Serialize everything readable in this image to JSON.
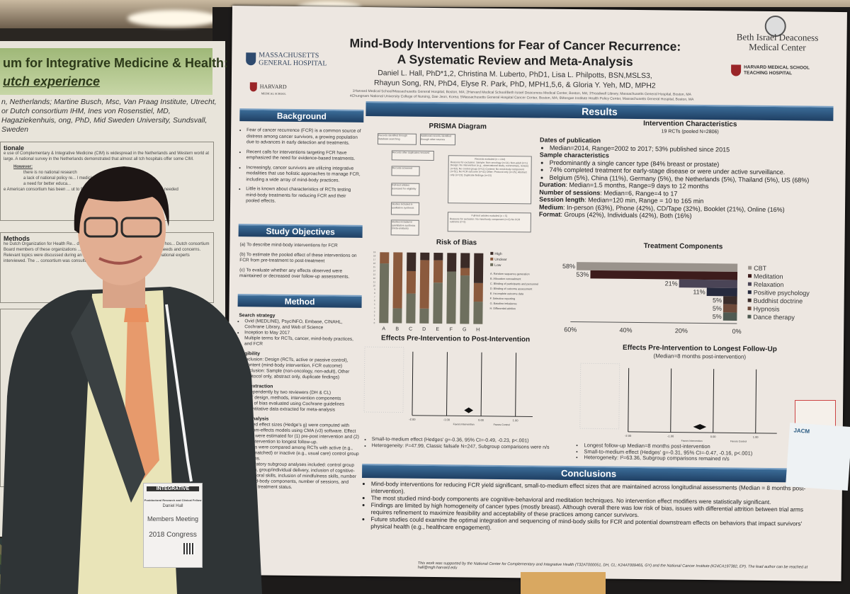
{
  "left_poster": {
    "title_line1": "um for Integrative Medicine & Health:",
    "title_line2": "utch experience",
    "authors": "n, Netherlands; Martine Busch, Msc, Van Praag Institute, Utrecht, or Dutch consortium IHM, Ines von Rosenstiel, MD, Hagaziekenhuis, ong, PhD, Mid Sweden University, Sundsvall, Sweden",
    "rationale_heading": "tionale",
    "rationale_text": "e use of Complementary & Integrative Medicine (CIM) is widespread in the Netherlands and Western world at large. A national survey in the Netherlands demonstrated that almost all tch hospitals offer some CIM.",
    "however": "However:",
    "however_items": [
      "there is no national research",
      "a lack of national policy re... l medicine and CIM",
      "a need for better educa..."
    ],
    "rationale_tail": "e American consortium has been ... ut to further pport and facilitate the growth of ... e needed",
    "methods_heading": "Methods",
    "methods_text": "he Dutch Organization for Health Re... d a steering committee to guide six pioneering hos... Dutch consortium Board members of these organizations ... were interviewed about their perceptions, needs and concerns. Relevant topics were discussed during an invit... CIM centers were visited and international experts interviewed. The ... consortium was consulted."
  },
  "poster": {
    "title_line1": "Mind-Body Interventions for Fear of Cancer Recurrence:",
    "title_line2": "A Systematic Review and Meta-Analysis",
    "authors_line1": "Daniel L. Hall, PhD*1,2, Christina M. Luberto, PhD1, Lisa L. Philpotts, BSN,MSLS3,",
    "authors_line2": "Rhayun Song, RN, PhD4, Elyse R. Park, PhD, MPH1,5,6, & Gloria Y. Yeh, MD, MPH2",
    "affiliations_line1": "1Harvard Medical School/Massachusetts General Hospital, Boston, MA; 2Harvard Medical School/Beth Israel Deaconess Medical Center, Boston, MA; 3Treadwell Library, Massachusetts General Hospital, Boston, MA",
    "affiliations_line2": "4Chungnam National University College of Nursing, Dae Jeon, Korea; 5Massachusetts General Hospital Cancer Center, Boston, MA; 6Mongan Institute Health Policy Center, Massachusetts General Hospital, Boston, MA",
    "logos": {
      "mgh": "MASSACHUSETTS GENERAL HOSPITAL",
      "harvard": "HARVARD",
      "harvard_sub": "MEDICAL SCHOOL",
      "bidmc": "Beth Israel Deaconess Medical Center",
      "hms": "HARVARD MEDICAL SCHOOL TEACHING HOSPITAL"
    },
    "background": {
      "heading": "Background",
      "items": [
        "Fear of cancer recurrence (FCR) is a common source of distress among cancer survivors, a growing population due to advances in early detection and treatments.",
        "Recent calls for interventions targeting FCR have emphasized the need for evidence-based treatments.",
        "Increasingly, cancer survivors are utilizing integrative modalities that use holistic approaches to manage FCR, including a wide array of mind-body practices.",
        "Little is known about characteristics of RCTs testing mind-body treatments for reducing FCR and their pooled effects."
      ]
    },
    "objectives": {
      "heading": "Study Objectives",
      "items": [
        "(a) To describe mind-body interventions for FCR",
        "(b) To estimate the pooled effect of these interventions on FCR from pre-treatment to post-treatment",
        "(c) To evaluate whether any effects observed were maintained or decreased over follow-up assessments."
      ]
    },
    "method": {
      "heading": "Method",
      "search_heading": "Search strategy",
      "search": [
        "Ovid (MEDLINE), PsycINFO, Embase, CINAHL, Cochrane Library, and Web of Science",
        "Inception to May 2017",
        "Multiple terms for RCTs, cancer, mind-body practices, and FCR"
      ],
      "elig_heading": "Eligibility",
      "elig": [
        "Inclusion: Design (RCTs, active or passive control), Content (mind-body intervention, FCR outcome)",
        "Exclusion: Sample (non-oncology, non-adult), Other (protocol only, abstract only, duplicate findings)"
      ],
      "extract_heading": "Data extraction",
      "extract": [
        "Independently by two reviewers (DH & CL)",
        "RCT design, methods, intervention components",
        "Risk of bias evaluated using Cochrane guidelines",
        "Quantitative data extracted for meta-analysis"
      ],
      "analysis_heading": "Data analysis",
      "analysis": [
        "Pooled effect sizes (Hedge's g) were computed with random-effects models using CMA (v3) software. Effect sizes were estimated for (1) pre-post intervention and (2) pre-intervention to longest follow-up.",
        "Effects were compared among RCTs with active (e.g., time-matched) or inactive (e.g., usual care) control group designs.",
        "Exploratory subgroup analyses included: control group design, group/individual delivery, inclusion of cognitive-behavioral skills, inclusion of mindfulness skills, number of mind-body components, number of sessions, and cancer treatment status."
      ]
    },
    "results_heading": "Results",
    "prisma": {
      "title": "PRISMA Diagram",
      "boxes": [
        "Records identified through database searching",
        "Additional records identified through other sources",
        "Records after duplicates removed",
        "Records screened",
        "Full-text articles assessed for eligibility",
        "Studies included in qualitative synthesis",
        "Studies included in quantitative synthesis (meta-analysis)"
      ],
      "excluded1_title": "Records excluded (n = 244)",
      "excluded1_text": "Reasons for exclusion: Sample: Non-oncology (n=14); Non-adult (n=1) Design: No intervention (e.g., observational study, commentary, review) (n=63); No control group (n=11) Content: No mind-body component (n=51); No FCR outcome (n=41) Other: Protocol only (n=25); Abstract only (n=23); Duplicate findings (n=15)",
      "excluded2_title": "Full-text articles excluded (n = 5)",
      "excluded2_text": "Reasons for exclusion: No mind-body component (n=3) No FCR outcome (n=2)"
    },
    "characteristics": {
      "title": "Intervention Characteristics",
      "subtitle": "19 RCTs (pooled N=2806)",
      "dates_heading": "Dates of publication",
      "dates": [
        "Median=2014, Range=2002 to 2017; 53% published since 2015"
      ],
      "sample_heading": "Sample characteristics",
      "sample": [
        "Predominantly a single cancer type (84% breast or prostate)",
        "74% completed treatment for early-stage disease or were under active surveillance.",
        "Belgium (5%), China (11%), Germany (5%), the Netherlands (5%), Thailand (5%), US (68%)"
      ],
      "rows": [
        {
          "label": "Duration",
          "value": ": Median=1.5 months, Range=9 days to 12 months"
        },
        {
          "label": "Number of sessions",
          "value": ": Median=6, Range=4 to 17"
        },
        {
          "label": "Session length",
          "value": ": Median=120 min, Range = 10 to 165 min"
        },
        {
          "label": "Medium",
          "value": ": In-person (63%), Phone (42%), CD/Tape (32%), Booklet (21%), Online (16%)"
        },
        {
          "label": "Format",
          "value": ": Groups (42%), Individuals (42%), Both (16%)"
        }
      ]
    },
    "forest_post": {
      "title": "Effects Pre-Intervention to Post-Intervention",
      "ticks": [
        "-2.00",
        "-1.00",
        "0.00",
        "1.00"
      ],
      "favors_left": "Favors Intervention",
      "favors_right": "Favors Control",
      "bullets": [
        "Small-to-medium effect (Hedges' g=-0.36, 95% CI=-0.49, -0.23, p<.001)",
        "Heterogeneity: I²=47.99, Classic failsafe N=247, Subgroup comparisons were n/s"
      ],
      "pooled": {
        "g": -0.36,
        "ci": [
          -0.49,
          -0.23
        ]
      }
    },
    "forest_followup": {
      "title": "Effects Pre-Intervention to Longest Follow-Up",
      "subtitle": "(Median=8 months post-intervention)",
      "ticks": [
        "-2.00",
        "-1.00",
        "0.00",
        "1.00"
      ],
      "favors_left": "Favors Intervention",
      "favors_right": "Favors Control",
      "bullets": [
        "Longest follow-up Median=8 months post-intervention",
        "Small-to-medium effect (Hedges' g=-0.31, 95% CI=-0.47, -0.16, p<.001)",
        "Heterogeneity: I²=63.36, Subgroup comparisons remained n/s"
      ],
      "pooled": {
        "g": -0.31,
        "ci": [
          -0.47,
          -0.16
        ]
      }
    },
    "conclusions": {
      "heading": "Conclusions",
      "items": [
        "Mind-body interventions for reducing FCR yield significant, small-to-medium effect sizes that are maintained across longitudinal assessments (Median = 8 months post-intervention).",
        "The most studied mind-body components are cognitive-behavioral and meditation techniques. No intervention effect modifiers were statistically significant.",
        "Findings are limited by high homogeneity of cancer types (mostly breast). Although overall there was low risk of bias, issues with differential attrition between trial arms requires refinement to maximize feasibility and acceptability of these practices among cancer survivors.",
        "Future studies could examine the optimal integration and sequencing of mind-body skills for FCR and potential downstream effects on behaviors that impact survivors' physical health (e.g., healthcare engagement)."
      ]
    },
    "acknowledgment": "This work was supported by the National Center for Complementary and Integrative Health (T32AT000051, DH, CL; K24AT009465, GY) and the National Cancer Institute (K24CA197382, EP). The lead author can be reached at hall@mgh.harvard.edu"
  },
  "chart_data": [
    {
      "type": "bar",
      "stacked": true,
      "title": "Risk of Bias",
      "categories": [
        "A",
        "B",
        "C",
        "D",
        "E",
        "F",
        "G",
        "H"
      ],
      "ylim": [
        0,
        19
      ],
      "yticks": [
        "0",
        "1",
        "2",
        "3",
        "4",
        "5",
        "6",
        "7",
        "8",
        "9",
        "10",
        "11",
        "12",
        "13",
        "14",
        "15",
        "16",
        "17",
        "18",
        "19"
      ],
      "series": [
        {
          "name": "Low",
          "color": "#6e6f5e",
          "values": [
            16,
            4,
            8,
            4,
            11,
            14,
            13,
            6
          ]
        },
        {
          "name": "Unclear",
          "color": "#8b5a3d",
          "values": [
            3,
            15,
            6,
            13,
            6,
            0,
            2,
            5
          ]
        },
        {
          "name": "High",
          "color": "#3b2b27",
          "values": [
            0,
            0,
            5,
            2,
            2,
            5,
            4,
            8
          ]
        }
      ],
      "legend_placement": "right",
      "category_key": [
        "A. Random sequence generation",
        "B. Allocation concealment",
        "C. Blinding of participants and personnel",
        "D. Blinding of outcome assessment",
        "E. Incomplete outcome data",
        "F. Selective reporting",
        "G. Baseline imbalance",
        "H. Differential attrition"
      ]
    },
    {
      "type": "bar",
      "orientation": "horizontal",
      "x_reversed": true,
      "title": "Treatment Components",
      "categories": [
        "CBT",
        "Meditation",
        "Relaxation",
        "Positive psychology",
        "Buddhist doctrine",
        "Hypnosis",
        "Dance therapy"
      ],
      "values": [
        58,
        53,
        21,
        11,
        5,
        5,
        5
      ],
      "labels": [
        "58%",
        "53%",
        "21%",
        "11%",
        "5%",
        "5%",
        "5%"
      ],
      "colors": [
        "#9a938c",
        "#3d1c1c",
        "#4a4456",
        "#262a3e",
        "#3a2c2a",
        "#6e4a3a",
        "#4f5a52"
      ],
      "xlim": [
        0,
        60
      ],
      "xticks": [
        "60%",
        "40%",
        "20%",
        "0%"
      ],
      "legend_placement": "right"
    }
  ],
  "badge": {
    "logo": "INTEGRATIVE",
    "role": "Postdoctoral Research and Clinical Fellow",
    "name": "Daniel Hall",
    "event": "Members Meeting",
    "congress": "2018 Congress"
  },
  "right_card": {
    "text": "JACM"
  }
}
